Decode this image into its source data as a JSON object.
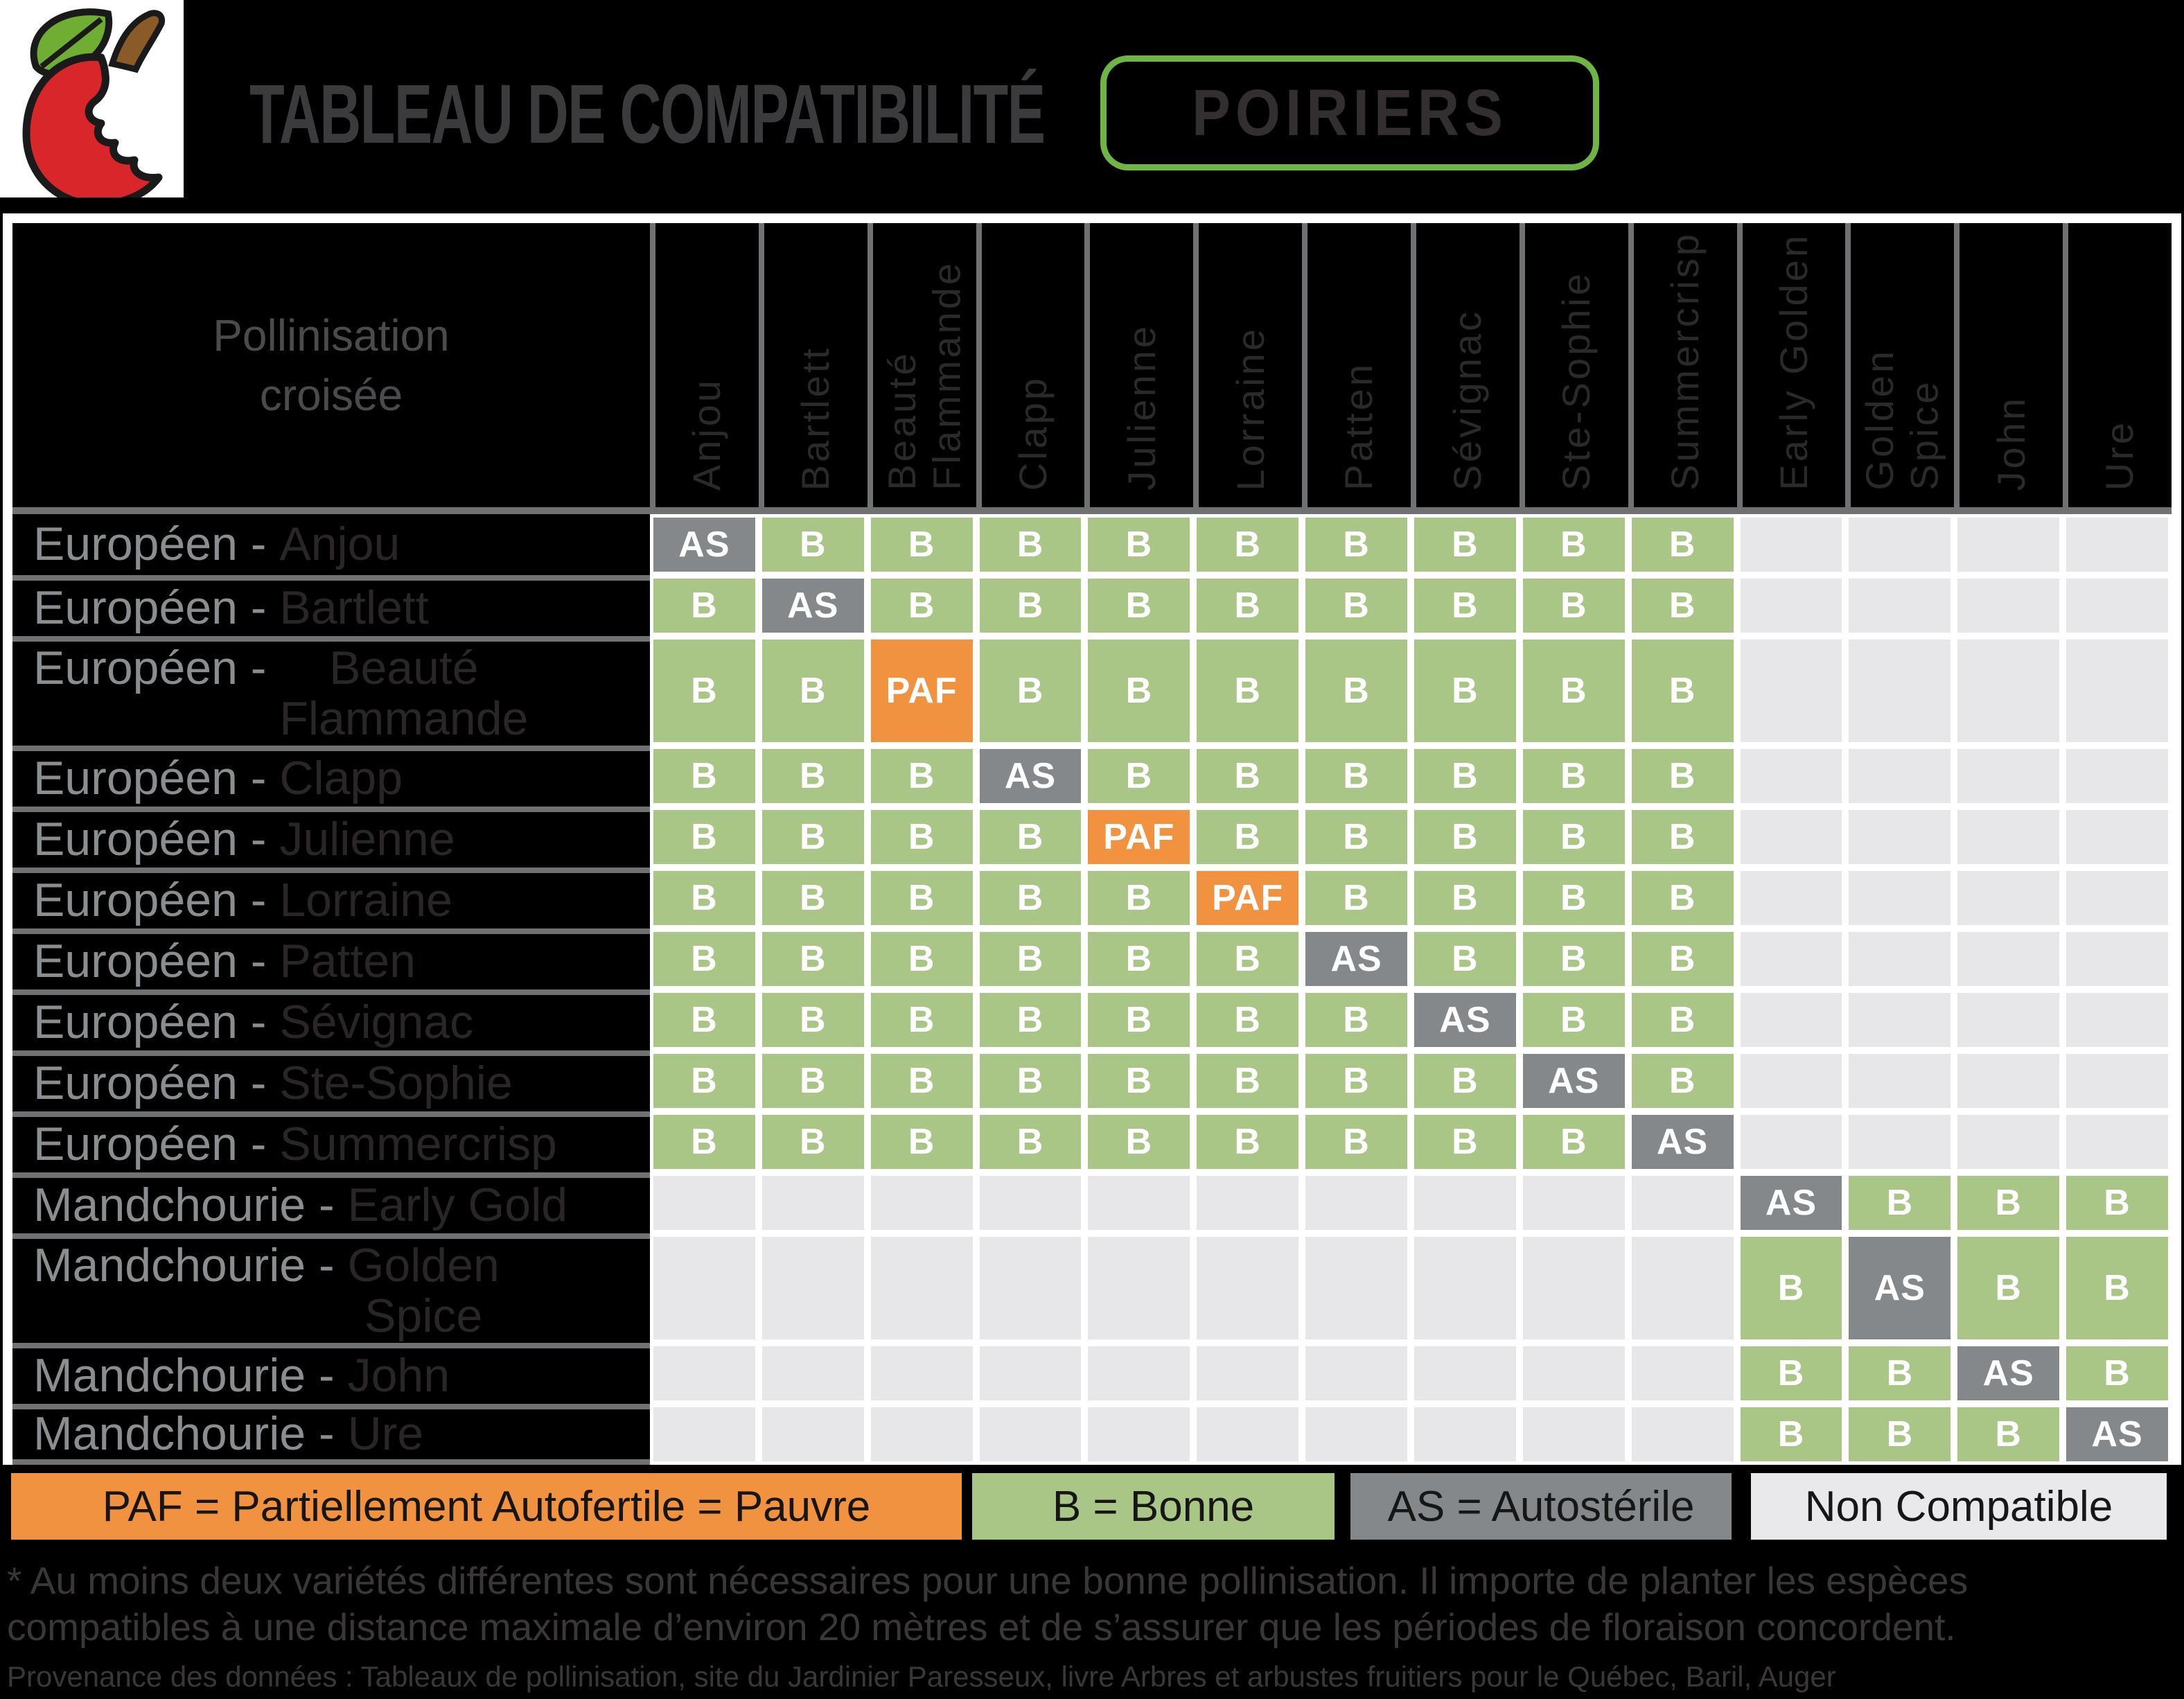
{
  "header": {
    "title": "TABLEAU DE COMPATIBILITÉ",
    "badge": "POIRIERS"
  },
  "table": {
    "corner_label": "Pollinisation\ncroisée",
    "columns": [
      "Anjou",
      "Bartlett",
      "Beauté\nFlammande",
      "Clapp",
      "Julienne",
      "Lorraine",
      "Patten",
      "Sévignac",
      "Ste-Sophie",
      "Summercrisp",
      "Early Golden",
      "Golden\nSpice",
      "John",
      "Ure"
    ],
    "rows": [
      {
        "species": "Européen",
        "variety": "Anjou",
        "tall": false,
        "cells": [
          "AS",
          "B",
          "B",
          "B",
          "B",
          "B",
          "B",
          "B",
          "B",
          "B",
          "",
          "",
          "",
          ""
        ]
      },
      {
        "species": "Européen",
        "variety": "Bartlett",
        "tall": false,
        "cells": [
          "B",
          "AS",
          "B",
          "B",
          "B",
          "B",
          "B",
          "B",
          "B",
          "B",
          "",
          "",
          "",
          ""
        ]
      },
      {
        "species": "Européen",
        "variety": "Beauté\nFlammande",
        "tall": true,
        "cells": [
          "B",
          "B",
          "PAF",
          "B",
          "B",
          "B",
          "B",
          "B",
          "B",
          "B",
          "",
          "",
          "",
          ""
        ]
      },
      {
        "species": "Européen",
        "variety": "Clapp",
        "tall": false,
        "cells": [
          "B",
          "B",
          "B",
          "AS",
          "B",
          "B",
          "B",
          "B",
          "B",
          "B",
          "",
          "",
          "",
          ""
        ]
      },
      {
        "species": "Européen",
        "variety": "Julienne",
        "tall": false,
        "cells": [
          "B",
          "B",
          "B",
          "B",
          "PAF",
          "B",
          "B",
          "B",
          "B",
          "B",
          "",
          "",
          "",
          ""
        ]
      },
      {
        "species": "Européen",
        "variety": "Lorraine",
        "tall": false,
        "cells": [
          "B",
          "B",
          "B",
          "B",
          "B",
          "PAF",
          "B",
          "B",
          "B",
          "B",
          "",
          "",
          "",
          ""
        ]
      },
      {
        "species": "Européen",
        "variety": "Patten",
        "tall": false,
        "cells": [
          "B",
          "B",
          "B",
          "B",
          "B",
          "B",
          "AS",
          "B",
          "B",
          "B",
          "",
          "",
          "",
          ""
        ]
      },
      {
        "species": "Européen",
        "variety": "Sévignac",
        "tall": false,
        "cells": [
          "B",
          "B",
          "B",
          "B",
          "B",
          "B",
          "B",
          "AS",
          "B",
          "B",
          "",
          "",
          "",
          ""
        ]
      },
      {
        "species": "Européen",
        "variety": "Ste-Sophie",
        "tall": false,
        "cells": [
          "B",
          "B",
          "B",
          "B",
          "B",
          "B",
          "B",
          "B",
          "AS",
          "B",
          "",
          "",
          "",
          ""
        ]
      },
      {
        "species": "Européen",
        "variety": "Summercrisp",
        "tall": false,
        "cells": [
          "B",
          "B",
          "B",
          "B",
          "B",
          "B",
          "B",
          "B",
          "B",
          "AS",
          "",
          "",
          "",
          ""
        ]
      },
      {
        "species": "Mandchourie",
        "variety": "Early Gold",
        "tall": false,
        "cells": [
          "",
          "",
          "",
          "",
          "",
          "",
          "",
          "",
          "",
          "",
          "AS",
          "B",
          "B",
          "B"
        ]
      },
      {
        "species": "Mandchourie",
        "variety": "Golden\nSpice",
        "tall": true,
        "cells": [
          "",
          "",
          "",
          "",
          "",
          "",
          "",
          "",
          "",
          "",
          "B",
          "AS",
          "B",
          "B"
        ]
      },
      {
        "species": "Mandchourie",
        "variety": "John",
        "tall": false,
        "cells": [
          "",
          "",
          "",
          "",
          "",
          "",
          "",
          "",
          "",
          "",
          "B",
          "B",
          "AS",
          "B"
        ]
      },
      {
        "species": "Mandchourie",
        "variety": "Ure",
        "tall": false,
        "cells": [
          "",
          "",
          "",
          "",
          "",
          "",
          "",
          "",
          "",
          "",
          "B",
          "B",
          "B",
          "AS"
        ]
      }
    ]
  },
  "cell_colors": {
    "B": "#a9c687",
    "AS": "#85888a",
    "PAF": "#f0923f",
    "": "#e7e7e9"
  },
  "legend": [
    {
      "key": "paf",
      "label": "PAF = Partiellement Autofertile = Pauvre",
      "color": "#f0923f"
    },
    {
      "key": "bonne",
      "label": "B = Bonne",
      "color": "#a9c687"
    },
    {
      "key": "autosterile",
      "label": "AS = Autostérile",
      "color": "#85888a"
    },
    {
      "key": "non-compatible",
      "label": "Non Compatible",
      "color": "#e9e9eb"
    }
  ],
  "footnote": "* Au moins deux variétés différentes sont nécessaires pour une bonne pollinisation. Il importe de planter les espèces compatibles à une distance maximale d’environ 20 mètres et de s’assurer que les périodes de floraison concordent.",
  "source": "Provenance des données : Tableaux de pollinisation, site du Jardinier Paresseux, livre Arbres et arbustes fruitiers pour le Québec, Baril, Auger"
}
